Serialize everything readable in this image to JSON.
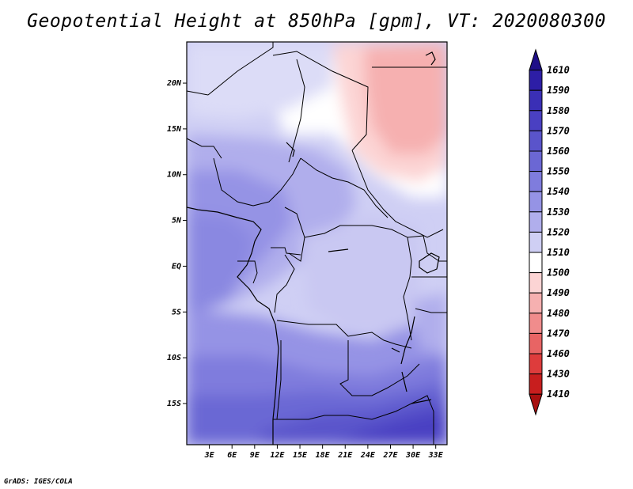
{
  "title": "Geopotential Height at 850hPa [gpm], VT: 2020080300",
  "credit": "GrADS: IGES/COLA",
  "map": {
    "variable": "Geopotential Height",
    "level": "850hPa",
    "units": "gpm",
    "valid_time": "2020080300",
    "lon_range": [
      0,
      34.5
    ],
    "lat_range": [
      -19.5,
      24.5
    ],
    "lat_ticks": [
      "20N",
      "15N",
      "10N",
      "5N",
      "EQ",
      "5S",
      "10S",
      "15S"
    ],
    "lon_ticks": [
      "3E",
      "6E",
      "9E",
      "12E",
      "15E",
      "18E",
      "21E",
      "24E",
      "27E",
      "30E",
      "33E"
    ]
  },
  "colorbar": {
    "levels": [
      "1610",
      "1590",
      "1580",
      "1570",
      "1560",
      "1550",
      "1540",
      "1530",
      "1520",
      "1510",
      "1500",
      "1490",
      "1480",
      "1470",
      "1460",
      "1430",
      "1410"
    ],
    "colors": [
      "#1f0f88",
      "#2d1ea6",
      "#3a2fb6",
      "#4a40c2",
      "#5a54cb",
      "#6b67d4",
      "#7f7cdd",
      "#9593e5",
      "#b0aeec",
      "#cfcff4",
      "#ffffff",
      "#fcd4d4",
      "#f6b0b0",
      "#f08c8c",
      "#e86464",
      "#de3c3c",
      "#c81e1e",
      "#a81010"
    ]
  }
}
